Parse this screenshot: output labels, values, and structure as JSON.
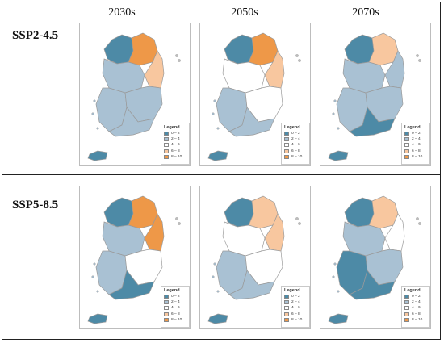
{
  "columns": [
    "2030s",
    "2050s",
    "2070s"
  ],
  "rows": [
    "SSP2-4.5",
    "SSP5-8.5"
  ],
  "legend": {
    "title": "Legend",
    "classes": [
      {
        "label": "0 – 2",
        "color": "#4d8aa6"
      },
      {
        "label": "2 – 4",
        "color": "#a9c1d3"
      },
      {
        "label": "4 – 6",
        "color": "#ffffff"
      },
      {
        "label": "6 – 8",
        "color": "#f8c79f"
      },
      {
        "label": "8 – 10",
        "color": "#ee9848"
      }
    ]
  },
  "panels": [
    {
      "scenario": "SSP2-4.5",
      "period": "2030s",
      "regions": {
        "northwest": 0,
        "northeast": 4,
        "east_coast": 3,
        "center": 1,
        "southwest": 1,
        "southeast": 1,
        "south_coast": 1,
        "jeju": 0
      }
    },
    {
      "scenario": "SSP2-4.5",
      "period": "2050s",
      "regions": {
        "northwest": 0,
        "northeast": 4,
        "east_coast": 3,
        "center": 2,
        "southwest": 1,
        "southeast": 2,
        "south_coast": 1,
        "jeju": 0
      }
    },
    {
      "scenario": "SSP2-4.5",
      "period": "2070s",
      "regions": {
        "northwest": 0,
        "northeast": 3,
        "east_coast": 1,
        "center": 1,
        "southwest": 1,
        "southeast": 1,
        "south_coast": 0,
        "jeju": 0
      }
    },
    {
      "scenario": "SSP5-8.5",
      "period": "2030s",
      "regions": {
        "northwest": 0,
        "northeast": 4,
        "east_coast": 4,
        "center": 1,
        "southwest": 1,
        "southeast": 2,
        "south_coast": 0,
        "jeju": 0
      }
    },
    {
      "scenario": "SSP5-8.5",
      "period": "2050s",
      "regions": {
        "northwest": 0,
        "northeast": 3,
        "east_coast": 3,
        "center": 2,
        "southwest": 1,
        "southeast": 2,
        "south_coast": 1,
        "jeju": 0
      }
    },
    {
      "scenario": "SSP5-8.5",
      "period": "2070s",
      "regions": {
        "northwest": 0,
        "northeast": 3,
        "east_coast": 2,
        "center": 1,
        "southwest": 0,
        "southeast": 1,
        "south_coast": 0,
        "jeju": 0
      }
    }
  ]
}
